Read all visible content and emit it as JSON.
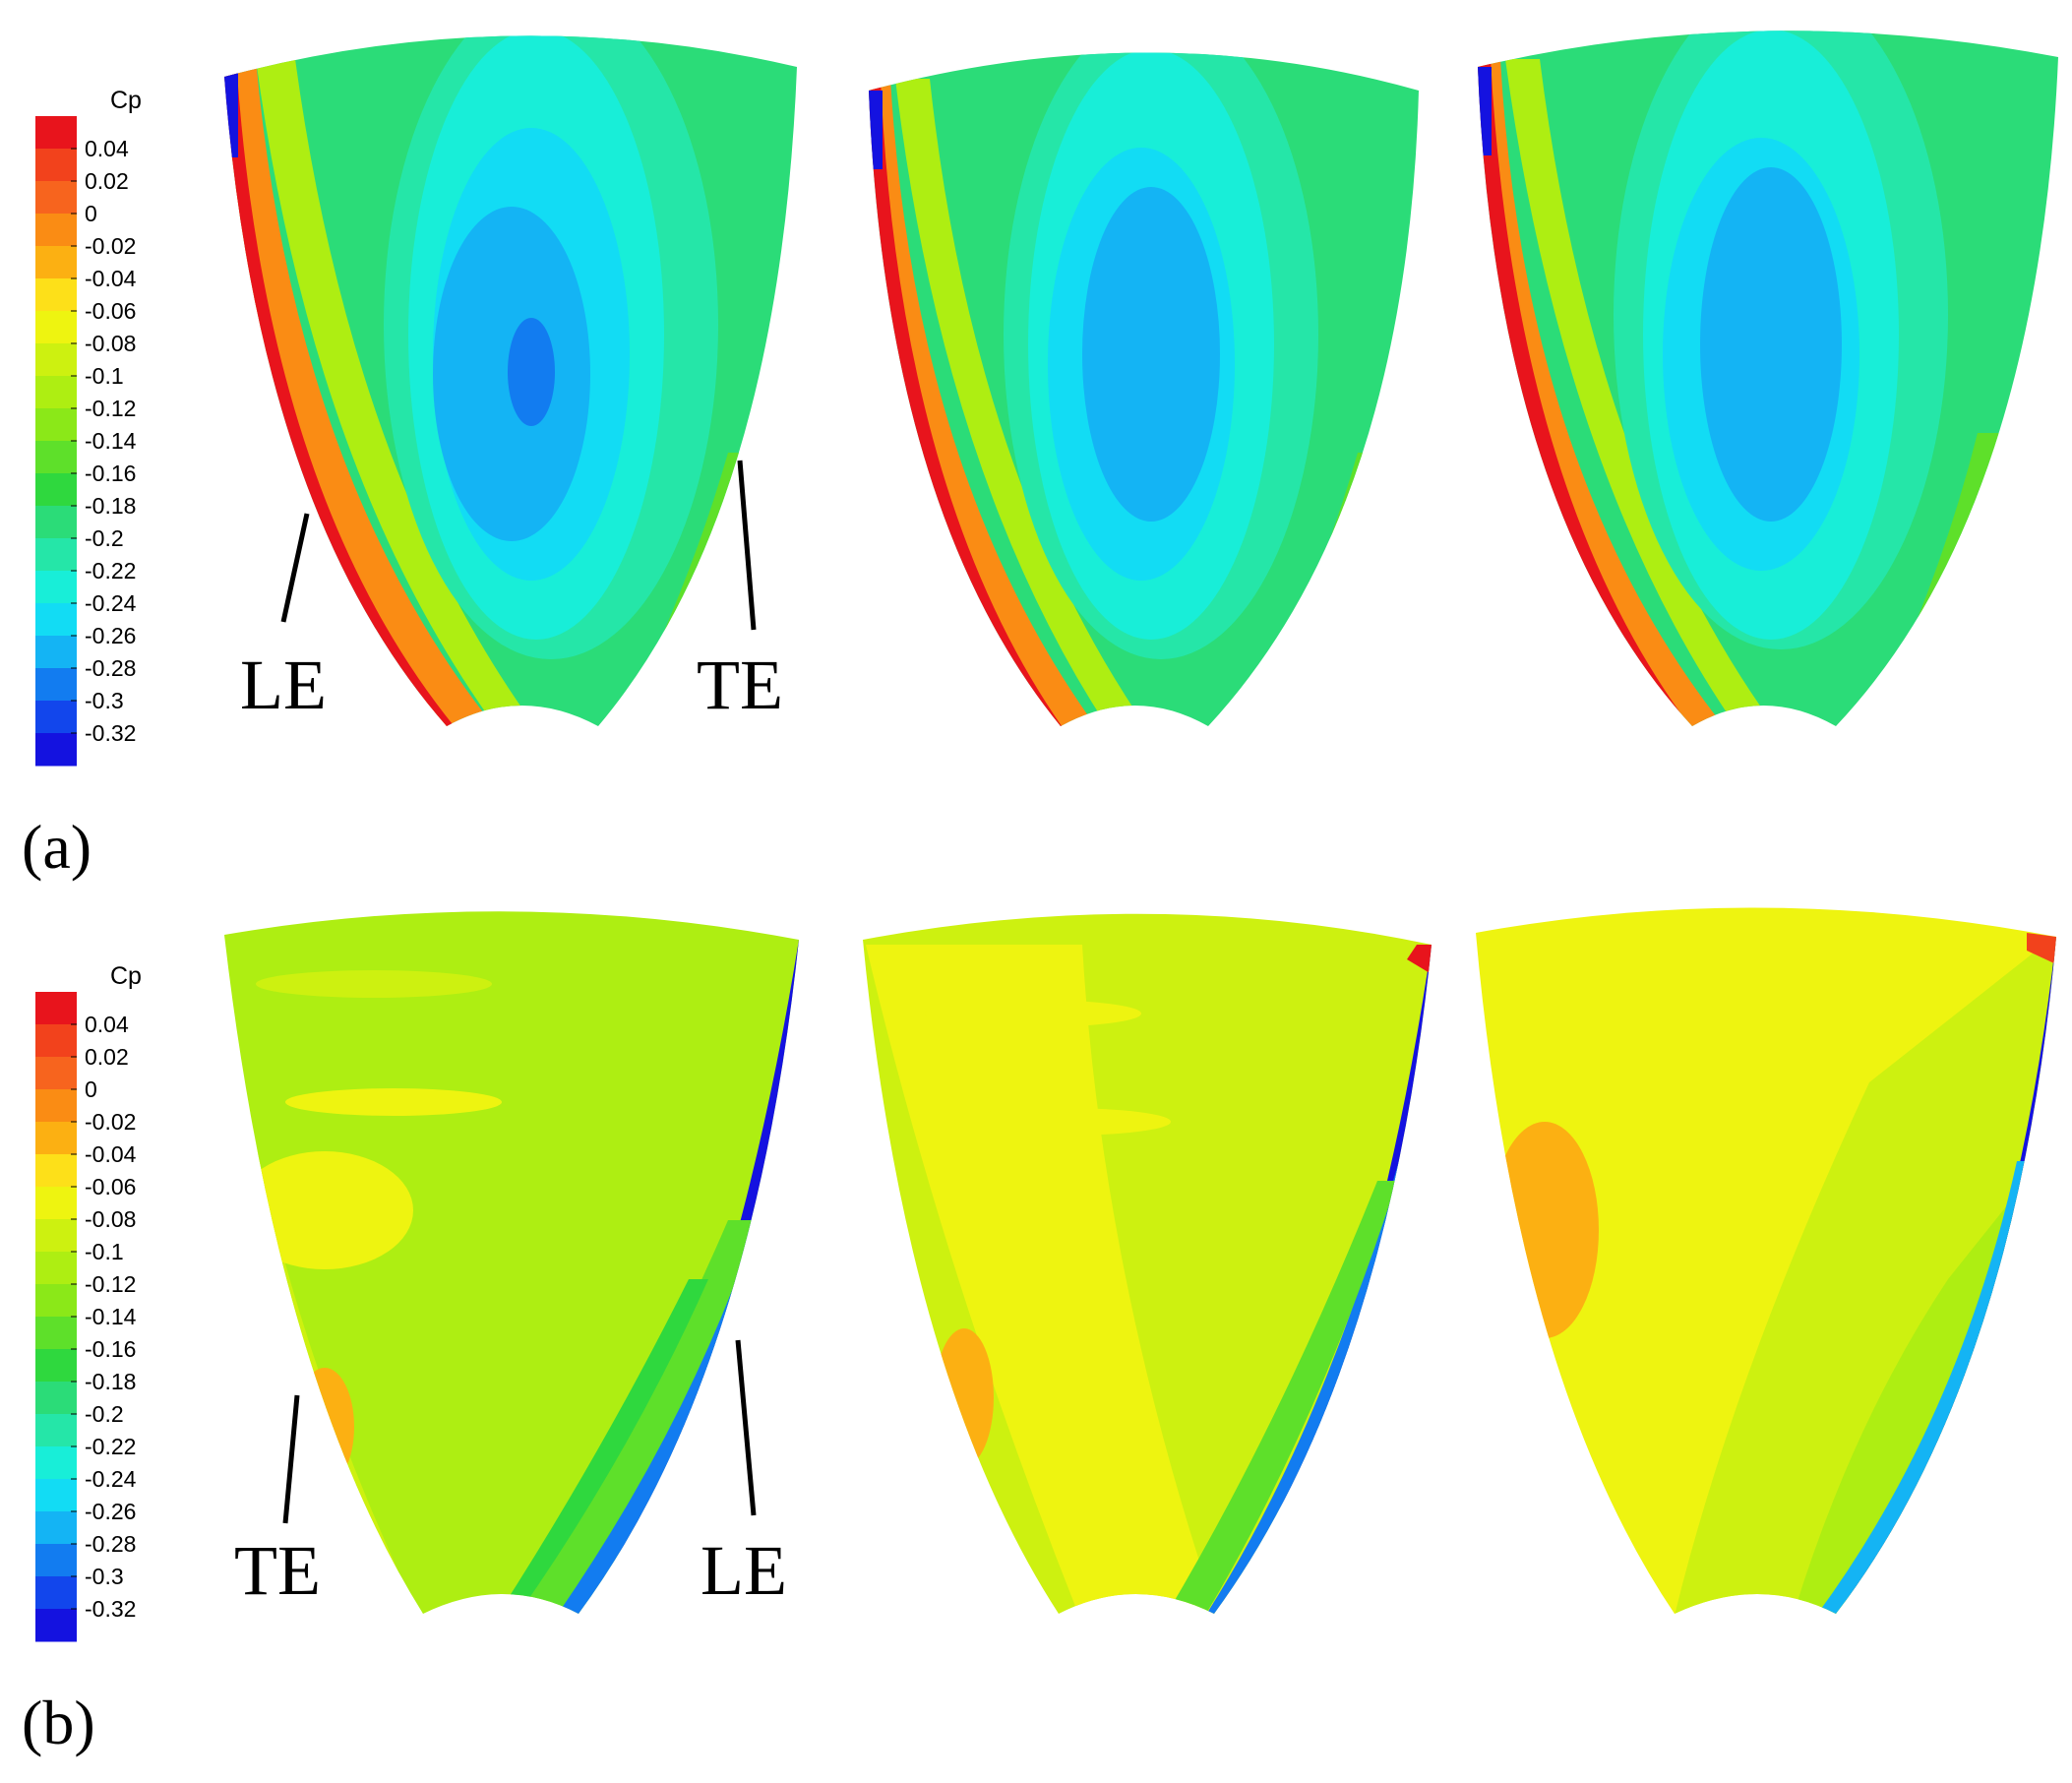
{
  "colorbar": {
    "title": "Cp",
    "ticks": [
      "0.04",
      "0.02",
      "0",
      "-0.02",
      "-0.04",
      "-0.06",
      "-0.08",
      "-0.1",
      "-0.12",
      "-0.14",
      "-0.16",
      "-0.18",
      "-0.2",
      "-0.22",
      "-0.24",
      "-0.26",
      "-0.28",
      "-0.3",
      "-0.32"
    ],
    "colors": [
      "#e8141c",
      "#f2421c",
      "#f7641e",
      "#fa8c14",
      "#fcb012",
      "#fde019",
      "#eef410",
      "#cdf110",
      "#aeee12",
      "#8be818",
      "#5ee02a",
      "#2fd83e",
      "#2bdc78",
      "#25e6a8",
      "#18eed8",
      "#12dcf4",
      "#14b4f4",
      "#127cf0",
      "#1246ec",
      "#1412e0"
    ]
  },
  "panels": [
    {
      "label": "(a)",
      "edge_labels": {
        "left": "LE",
        "right": "TE"
      },
      "subplot_count": 3,
      "dominant_colors": {
        "left_edge": "#e8141c",
        "center": "#12dcf4",
        "core": "#127cf0"
      }
    },
    {
      "label": "(b)",
      "edge_labels": {
        "left": "TE",
        "right": "LE"
      },
      "subplot_count": 3,
      "dominant_colors": {
        "right_edge": "#1412e0",
        "body": "#cdf110",
        "body_alt": "#fde019"
      }
    }
  ]
}
